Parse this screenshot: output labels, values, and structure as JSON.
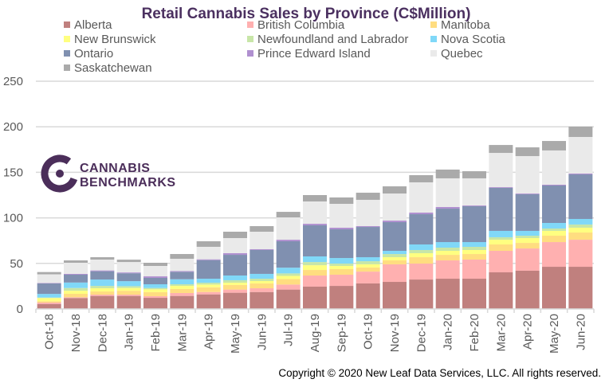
{
  "chart_data": {
    "type": "bar",
    "stacked": true,
    "title": "Retail Cannabis Sales by Province (C$Million)",
    "xlabel": "",
    "ylabel": "",
    "ylim": [
      0,
      250
    ],
    "yticks": [
      0,
      50,
      100,
      150,
      200,
      250
    ],
    "grid": true,
    "legend_position": "top",
    "categories": [
      "Oct-18",
      "Nov-18",
      "Dec-18",
      "Jan-19",
      "Feb-19",
      "Mar-19",
      "Apr-19",
      "May-19",
      "Jun-19",
      "Jul-19",
      "Aug-19",
      "Sep-19",
      "Oct-19",
      "Nov-19",
      "Dec-19",
      "Jan-20",
      "Feb-20",
      "Mar-20",
      "Apr-20",
      "May-20",
      "Jun-20"
    ],
    "series": [
      {
        "name": "Alberta",
        "color": "#C0807E",
        "values": [
          5.5,
          12,
          14.3,
          14.3,
          12.2,
          14.3,
          16,
          17.8,
          18.6,
          21.3,
          24.5,
          25.3,
          28,
          29.7,
          32.3,
          33.2,
          33.2,
          40.2,
          42,
          46.3,
          46.3
        ]
      },
      {
        "name": "British Columbia",
        "color": "#FFB0B0",
        "values": [
          1.5,
          0.8,
          1.4,
          1.4,
          1.8,
          3.2,
          2.6,
          3.5,
          4.1,
          5.5,
          12.2,
          12.3,
          13,
          19.3,
          17.5,
          20.1,
          21,
          23.6,
          24.4,
          27.1,
          29.7
        ]
      },
      {
        "name": "Manitoba",
        "color": "#FFDD80",
        "values": [
          1.5,
          3.8,
          3.5,
          4.3,
          4.4,
          4.4,
          5.2,
          5,
          5.3,
          6,
          6.1,
          6.1,
          4.5,
          4.3,
          7,
          6.1,
          6.1,
          7,
          6.1,
          7,
          7.9
        ]
      },
      {
        "name": "New Brunswick",
        "color": "#FFFF80",
        "values": [
          3.5,
          3.4,
          3.5,
          3,
          3.2,
          3.4,
          3,
          2.5,
          2.6,
          3.5,
          5.2,
          3.5,
          3.5,
          3.5,
          4.4,
          4.4,
          4.4,
          5.2,
          5.3,
          5.3,
          5.3
        ]
      },
      {
        "name": "Newfoundland and Labrador",
        "color": "#C8E6A8",
        "values": [
          0.5,
          3,
          2.6,
          2,
          1.4,
          1.8,
          2,
          2.7,
          2.6,
          2.7,
          3.5,
          2.6,
          3.4,
          3.5,
          3.5,
          3.5,
          3.5,
          2.7,
          2.6,
          2.6,
          3.5
        ]
      },
      {
        "name": "Nova Scotia",
        "color": "#80D8F8",
        "values": [
          4,
          6,
          7,
          5.5,
          4.1,
          5.5,
          4.4,
          5.2,
          5.3,
          6.3,
          6.2,
          6.1,
          4.4,
          3.5,
          6.1,
          6.1,
          5.2,
          7,
          5.3,
          6.1,
          6.1
        ]
      },
      {
        "name": "Ontario",
        "color": "#8090B0",
        "values": [
          11.5,
          8.6,
          9.1,
          8.7,
          7,
          8.2,
          20.4,
          22.7,
          26.2,
          29,
          34.1,
          31.5,
          33.2,
          31.5,
          33.2,
          36.7,
          39.4,
          47.2,
          40.2,
          41.1,
          48.9
        ]
      },
      {
        "name": "Prince Edward Island",
        "color": "#B090D0",
        "values": [
          0.5,
          0.9,
          0.9,
          0.9,
          1.7,
          0.9,
          0.9,
          1.8,
          0.9,
          1.7,
          1.7,
          1.8,
          0.9,
          1.7,
          1.8,
          1.8,
          0.8,
          0.8,
          0.8,
          0.9,
          0.9
        ]
      },
      {
        "name": "Quebec",
        "color": "#EAEAEA",
        "values": [
          9.5,
          12.2,
          11.9,
          11.4,
          11.4,
          13.4,
          13.7,
          16.6,
          19.2,
          24.5,
          24.5,
          26.2,
          28.9,
          29.7,
          33.2,
          31.5,
          29.8,
          37.6,
          41.1,
          37.6,
          40.2
        ]
      },
      {
        "name": "Saskatchewan",
        "color": "#AAAAAA",
        "values": [
          2.5,
          2.6,
          2.6,
          2.6,
          3.5,
          5.2,
          6.1,
          7,
          6.1,
          6.1,
          7,
          7,
          7.8,
          7.9,
          7.9,
          9.6,
          7.8,
          8.7,
          9.6,
          10.4,
          11.4
        ]
      }
    ]
  },
  "logo": {
    "line1": "CANNABIS",
    "line2": "BENCHMARKS",
    "color": "#4B2E5A"
  },
  "copyright": "Copyright © 2020 New Leaf Data Services, LLC. All rights reserved."
}
